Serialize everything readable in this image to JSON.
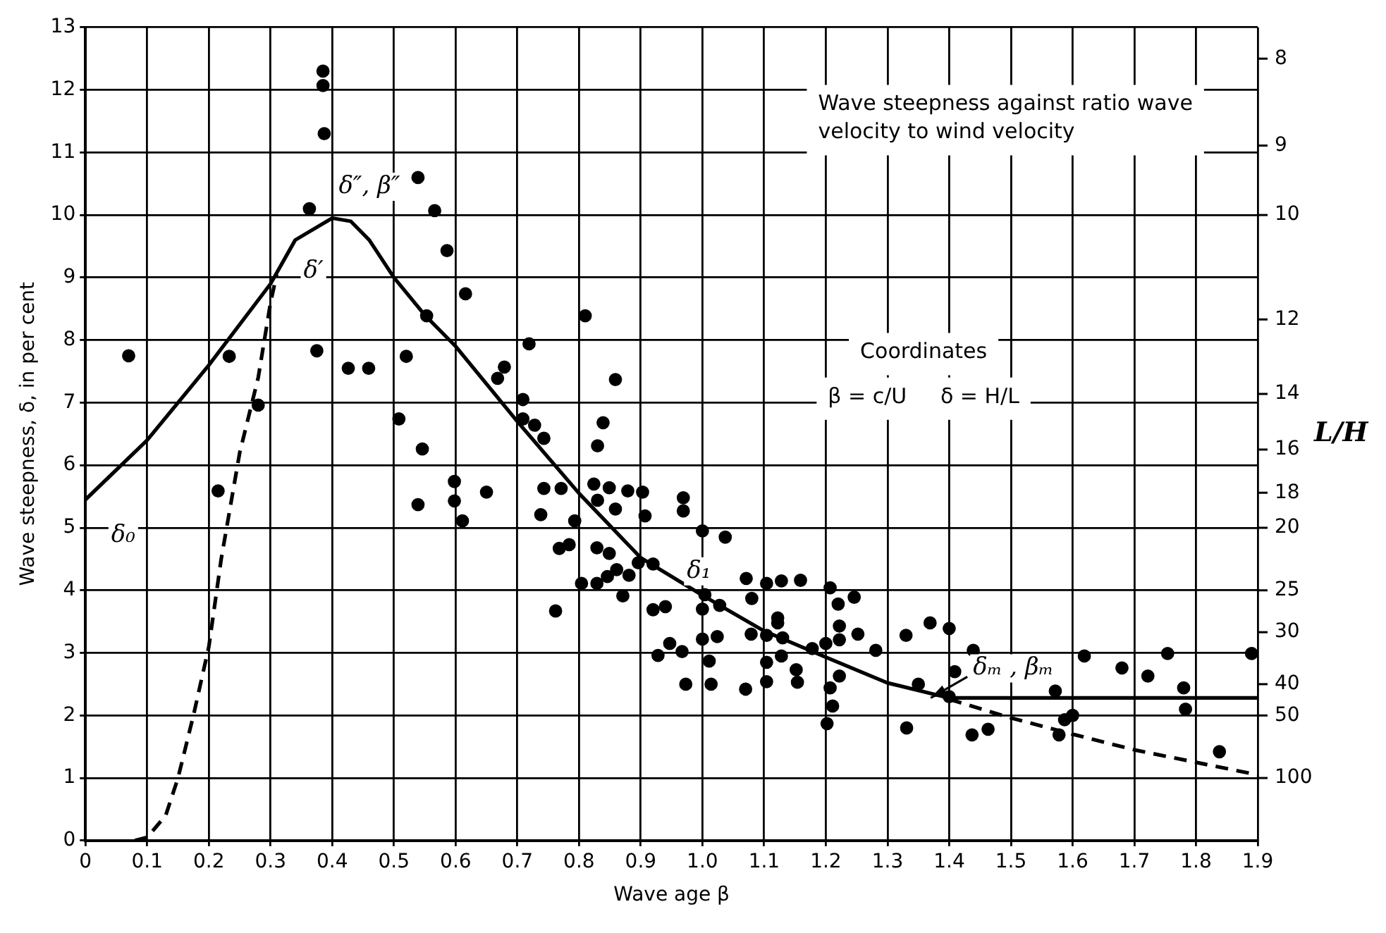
{
  "chart_data": {
    "type": "scatter",
    "xlabel": "Wave age β",
    "ylabel": "Wave steepness, δ, in per cent",
    "xlim": [
      0,
      1.9
    ],
    "xticks": [
      0,
      0.1,
      0.2,
      0.3,
      0.4,
      0.5,
      0.6,
      0.7,
      0.8,
      0.9,
      {
        "value": 1,
        "label": "1.0"
      },
      1.1,
      1.2,
      1.3,
      1.4,
      1.5,
      1.6,
      1.7,
      1.8,
      1.9
    ],
    "ylim": [
      0,
      13
    ],
    "yticks": [
      0,
      1,
      2,
      3,
      4,
      5,
      6,
      7,
      8,
      9,
      10,
      11,
      12,
      13
    ],
    "grid": true,
    "legend": false,
    "annotations": [
      "Wave steepness against ratio wave velocity to wind velocity",
      "Coordinates",
      "β = c/U     δ = H/L",
      "δ₀",
      "δ′",
      "δ″, β″",
      "δ₁",
      {
        "text": "δₘ , βₘ",
        "x": 1.37,
        "y": 2.28
      },
      "L/H",
      "8",
      "9",
      "10",
      "12",
      "14",
      "16",
      "18",
      "20",
      "25",
      "30",
      "40",
      "50",
      "100"
    ],
    "series": [
      {
        "type": "scatter",
        "marker": "circle",
        "color": "#000000",
        "x": [
          0.07,
          0.385,
          0.385,
          0.387,
          0.363,
          0.375,
          0.233,
          0.28,
          0.426,
          0.459,
          0.539,
          0.566,
          0.586,
          0.553,
          0.52,
          0.508,
          0.215,
          0.546,
          0.539,
          0.598,
          0.598,
          0.616,
          0.81,
          0.719,
          0.679,
          0.668,
          0.859,
          0.709,
          0.709,
          0.728,
          0.743,
          0.839,
          0.83,
          0.611,
          0.65,
          0.743,
          0.771,
          0.738,
          0.824,
          0.849,
          0.83,
          0.859,
          0.879,
          0.903,
          0.907,
          0.969,
          0.969,
          0.793,
          1.0,
          1.037,
          0.768,
          0.784,
          0.829,
          0.849,
          0.896,
          0.92,
          0.804,
          0.829,
          0.846,
          0.861,
          0.881,
          0.871,
          0.762,
          0.92,
          0.94,
          1.004,
          1.0,
          1.028,
          1.071,
          1.08,
          1.104,
          1.128,
          1.159,
          1.207,
          1.22,
          1.246,
          1.122,
          1.0,
          1.024,
          0.947,
          0.928,
          0.967,
          1.011,
          0.973,
          1.014,
          1.07,
          1.079,
          1.104,
          1.104,
          1.104,
          1.122,
          1.13,
          1.128,
          1.152,
          1.154,
          1.222,
          1.222,
          1.252,
          1.178,
          1.2,
          1.222,
          1.207,
          1.211,
          1.202,
          1.281,
          1.33,
          1.369,
          1.35,
          1.331,
          1.4,
          1.439,
          1.409,
          1.437,
          1.463,
          1.4,
          1.619,
          1.68,
          1.722,
          1.754,
          1.78,
          1.783,
          1.89,
          1.572,
          1.587,
          1.578,
          1.6,
          1.838
        ],
        "values": [
          7.75,
          12.3,
          12.07,
          11.3,
          10.1,
          7.83,
          7.74,
          6.96,
          7.55,
          7.55,
          10.6,
          10.07,
          9.43,
          8.39,
          7.74,
          6.74,
          5.59,
          6.26,
          5.37,
          5.74,
          5.43,
          8.74,
          8.39,
          7.94,
          7.57,
          7.39,
          7.37,
          7.05,
          6.74,
          6.64,
          6.43,
          6.68,
          6.31,
          5.11,
          5.57,
          5.63,
          5.63,
          5.21,
          5.7,
          5.64,
          5.44,
          5.3,
          5.59,
          5.57,
          5.19,
          5.48,
          5.27,
          5.11,
          4.95,
          4.85,
          4.67,
          4.73,
          4.68,
          4.59,
          4.44,
          4.42,
          4.11,
          4.11,
          4.22,
          4.33,
          4.24,
          3.91,
          3.67,
          3.69,
          3.74,
          3.93,
          3.7,
          3.76,
          4.19,
          3.87,
          4.11,
          4.15,
          4.16,
          4.04,
          3.78,
          3.89,
          3.56,
          3.22,
          3.26,
          3.15,
          2.96,
          3.02,
          2.87,
          2.5,
          2.5,
          2.42,
          3.3,
          3.28,
          2.85,
          2.54,
          3.48,
          3.24,
          2.95,
          2.73,
          2.53,
          3.43,
          3.21,
          3.3,
          3.07,
          3.15,
          2.63,
          2.44,
          2.15,
          1.87,
          3.04,
          3.28,
          3.48,
          2.5,
          1.8,
          3.39,
          3.04,
          2.7,
          1.69,
          1.78,
          2.3,
          2.95,
          2.76,
          2.63,
          2.99,
          2.44,
          2.1,
          2.99,
          2.39,
          1.93,
          1.69,
          2.0,
          1.42
        ]
      },
      {
        "type": "line",
        "marker": "none",
        "line_style": "solid",
        "color": "#000000",
        "x": [
          0,
          0.1,
          0.2,
          0.3,
          0.34,
          0.4,
          0.43,
          0.46,
          0.5,
          0.55,
          0.6,
          0.7,
          0.8,
          0.9,
          1.0,
          1.1,
          1.2,
          1.3,
          1.4,
          1.9
        ],
        "values": [
          5.45,
          6.4,
          7.6,
          8.9,
          9.6,
          9.95,
          9.9,
          9.6,
          9.0,
          8.4,
          7.9,
          6.7,
          5.55,
          4.52,
          3.92,
          3.35,
          2.93,
          2.52,
          2.28,
          2.28
        ]
      },
      {
        "type": "line",
        "marker": "none",
        "line_style": "dashed",
        "color": "#000000",
        "x": [
          0.08,
          0.1,
          0.13,
          0.15,
          0.175,
          0.2,
          0.22,
          0.25,
          0.28,
          0.3,
          0.31,
          null,
          1.4,
          1.5,
          1.6,
          1.7,
          1.8,
          1.9
        ],
        "values": [
          0,
          0.05,
          0.4,
          1,
          2,
          3.1,
          4.5,
          6.2,
          7.4,
          8.6,
          9.05,
          null,
          2.26,
          1.96,
          1.7,
          1.45,
          1.25,
          1.05
        ]
      }
    ]
  }
}
